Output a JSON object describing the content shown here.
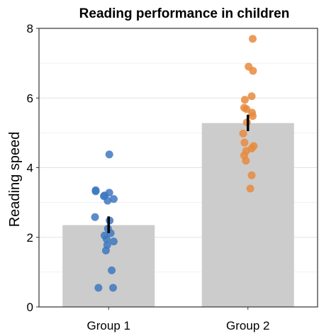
{
  "chart_data": {
    "type": "bar",
    "title": "Reading performance in children",
    "xlabel": "",
    "ylabel": "Reading speed",
    "ylim": [
      0,
      8
    ],
    "y_ticks": [
      0,
      2,
      4,
      6,
      8
    ],
    "grid": "horizontal",
    "categories": [
      "Group 1",
      "Group 2"
    ],
    "values": [
      2.35,
      5.28
    ],
    "error_bars": [
      {
        "lower": 2.12,
        "upper": 2.6
      },
      {
        "lower": 5.05,
        "upper": 5.52
      }
    ],
    "colors": {
      "bar": "#cccccc",
      "grid": "#e2e2e2",
      "axis": "#333333",
      "error": "#000000",
      "group1_points": "#3d78c0",
      "group2_points": "#e8893d"
    },
    "points": [
      {
        "category": "Group 1",
        "values": [
          4.38,
          3.35,
          3.32,
          3.28,
          3.2,
          3.18,
          3.1,
          3.05,
          2.58,
          2.48,
          2.25,
          2.12,
          2.05,
          1.95,
          1.88,
          1.78,
          1.62,
          1.05,
          0.55,
          0.55
        ],
        "offsets": [
          0.02,
          -0.38,
          -0.38,
          0.02,
          -0.12,
          -0.14,
          0.15,
          -0.03,
          -0.4,
          0.03,
          -0.02,
          0.06,
          -0.12,
          -0.06,
          0.15,
          -0.04,
          -0.08,
          0.09,
          -0.3,
          0.13
        ]
      },
      {
        "category": "Group 2",
        "values": [
          7.7,
          6.9,
          6.78,
          6.05,
          5.95,
          5.72,
          5.68,
          5.58,
          5.48,
          5.3,
          4.98,
          4.72,
          4.62,
          4.55,
          4.48,
          4.35,
          4.2,
          3.78,
          3.4
        ],
        "offsets": [
          0.14,
          0.02,
          0.15,
          0.11,
          -0.09,
          -0.11,
          -0.04,
          0.12,
          0.14,
          -0.03,
          -0.14,
          -0.1,
          0.17,
          0.11,
          -0.05,
          -0.11,
          -0.06,
          0.11,
          0.07
        ]
      }
    ]
  }
}
